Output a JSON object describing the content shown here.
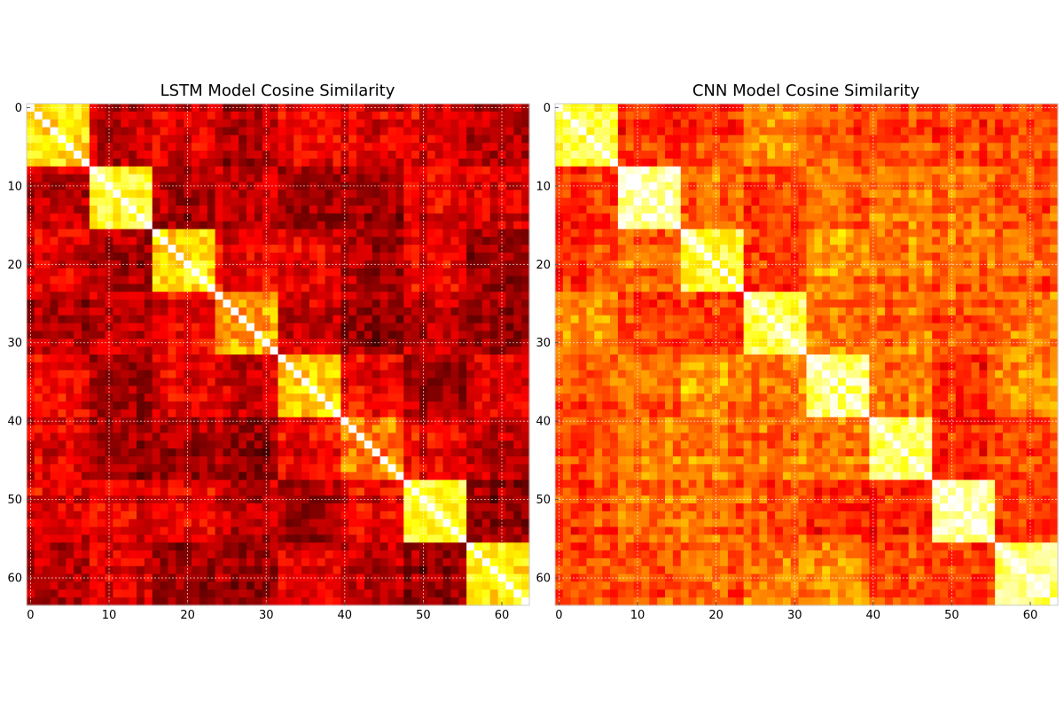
{
  "chart_data": [
    {
      "type": "heatmap",
      "title": "LSTM Model Cosine Similarity",
      "xlabel": "",
      "ylabel": "",
      "size": 64,
      "colormap": "hot",
      "grid": true,
      "xlim": [
        0,
        63
      ],
      "ylim": [
        63,
        0
      ],
      "x_ticks": [
        "0",
        "10",
        "20",
        "30",
        "40",
        "50",
        "60"
      ],
      "y_ticks": [
        "0",
        "10",
        "20",
        "30",
        "40",
        "50",
        "60"
      ],
      "diagonal_value": 1.0,
      "blocks": [
        {
          "rows": [
            0,
            7
          ],
          "cols": [
            0,
            7
          ],
          "similarity": 0.72
        },
        {
          "rows": [
            8,
            15
          ],
          "cols": [
            8,
            15
          ],
          "similarity": 0.78
        },
        {
          "rows": [
            16,
            23
          ],
          "cols": [
            16,
            23
          ],
          "similarity": 0.7
        },
        {
          "rows": [
            24,
            31
          ],
          "cols": [
            24,
            31
          ],
          "similarity": 0.62
        },
        {
          "rows": [
            32,
            39
          ],
          "cols": [
            32,
            39
          ],
          "similarity": 0.68
        },
        {
          "rows": [
            40,
            47
          ],
          "cols": [
            40,
            47
          ],
          "similarity": 0.55
        },
        {
          "rows": [
            48,
            55
          ],
          "cols": [
            48,
            55
          ],
          "similarity": 0.78
        },
        {
          "rows": [
            56,
            63
          ],
          "cols": [
            56,
            63
          ],
          "similarity": 0.72
        }
      ],
      "off_block_similarity_range": [
        0.05,
        0.55
      ]
    },
    {
      "type": "heatmap",
      "title": "CNN Model Cosine Similarity",
      "xlabel": "",
      "ylabel": "",
      "size": 64,
      "colormap": "hot",
      "grid": true,
      "xlim": [
        0,
        63
      ],
      "ylim": [
        63,
        0
      ],
      "x_ticks": [
        "0",
        "10",
        "20",
        "30",
        "40",
        "50",
        "60"
      ],
      "y_ticks": [
        "0",
        "10",
        "20",
        "30",
        "40",
        "50",
        "60"
      ],
      "diagonal_value": 1.0,
      "blocks": [
        {
          "rows": [
            0,
            7
          ],
          "cols": [
            0,
            7
          ],
          "similarity": 0.8
        },
        {
          "rows": [
            8,
            15
          ],
          "cols": [
            8,
            15
          ],
          "similarity": 0.92
        },
        {
          "rows": [
            16,
            23
          ],
          "cols": [
            16,
            23
          ],
          "similarity": 0.8
        },
        {
          "rows": [
            24,
            31
          ],
          "cols": [
            24,
            31
          ],
          "similarity": 0.82
        },
        {
          "rows": [
            32,
            39
          ],
          "cols": [
            32,
            39
          ],
          "similarity": 0.88
        },
        {
          "rows": [
            40,
            47
          ],
          "cols": [
            40,
            47
          ],
          "similarity": 0.86
        },
        {
          "rows": [
            48,
            55
          ],
          "cols": [
            48,
            55
          ],
          "similarity": 0.9
        },
        {
          "rows": [
            56,
            63
          ],
          "cols": [
            56,
            63
          ],
          "similarity": 0.86
        }
      ],
      "off_block_similarity_range": [
        0.25,
        0.75
      ]
    }
  ]
}
